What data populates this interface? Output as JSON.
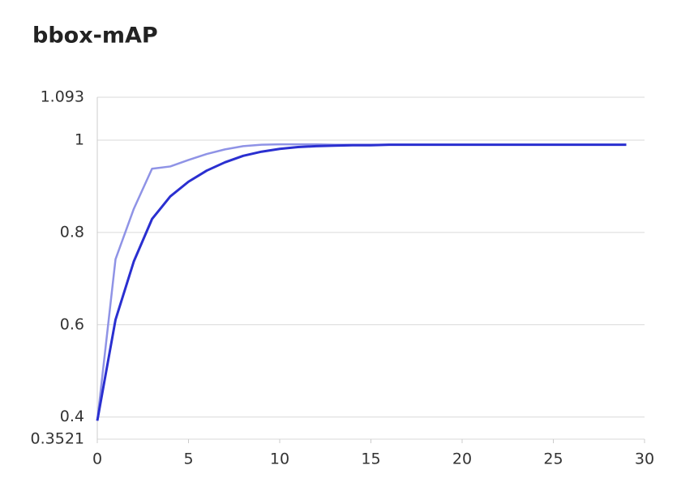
{
  "chart_data": {
    "type": "line",
    "title": "bbox-mAP",
    "x": [
      0,
      1,
      2,
      3,
      4,
      5,
      6,
      7,
      8,
      9,
      10,
      11,
      12,
      13,
      14,
      15,
      16,
      17,
      18,
      19,
      20,
      21,
      22,
      23,
      24,
      25,
      26,
      27,
      28,
      29
    ],
    "series": [
      {
        "color": "#8f93e6",
        "values": [
          0.392,
          0.742,
          0.851,
          0.938,
          0.943,
          0.957,
          0.97,
          0.98,
          0.987,
          0.99,
          0.991,
          0.991,
          0.991,
          0.99,
          0.99,
          0.99,
          0.99,
          0.99,
          0.99,
          0.99,
          0.99,
          0.99,
          0.99,
          0.99,
          0.99,
          0.99,
          0.99,
          0.99,
          0.99,
          0.99
        ]
      },
      {
        "color": "#2a2fd0",
        "values": [
          0.392,
          0.611,
          0.737,
          0.829,
          0.878,
          0.91,
          0.934,
          0.952,
          0.966,
          0.975,
          0.981,
          0.985,
          0.987,
          0.988,
          0.989,
          0.989,
          0.99,
          0.99,
          0.99,
          0.99,
          0.99,
          0.99,
          0.99,
          0.99,
          0.99,
          0.99,
          0.99,
          0.99,
          0.99,
          0.99
        ]
      }
    ],
    "xlim": [
      0,
      30
    ],
    "xticks": [
      0,
      5,
      10,
      15,
      20,
      25,
      30
    ],
    "ylim": [
      0.3521,
      1.093
    ],
    "yticks": [
      0.3521,
      0.4,
      0.6,
      0.8,
      1,
      1.093
    ],
    "grid": true
  }
}
